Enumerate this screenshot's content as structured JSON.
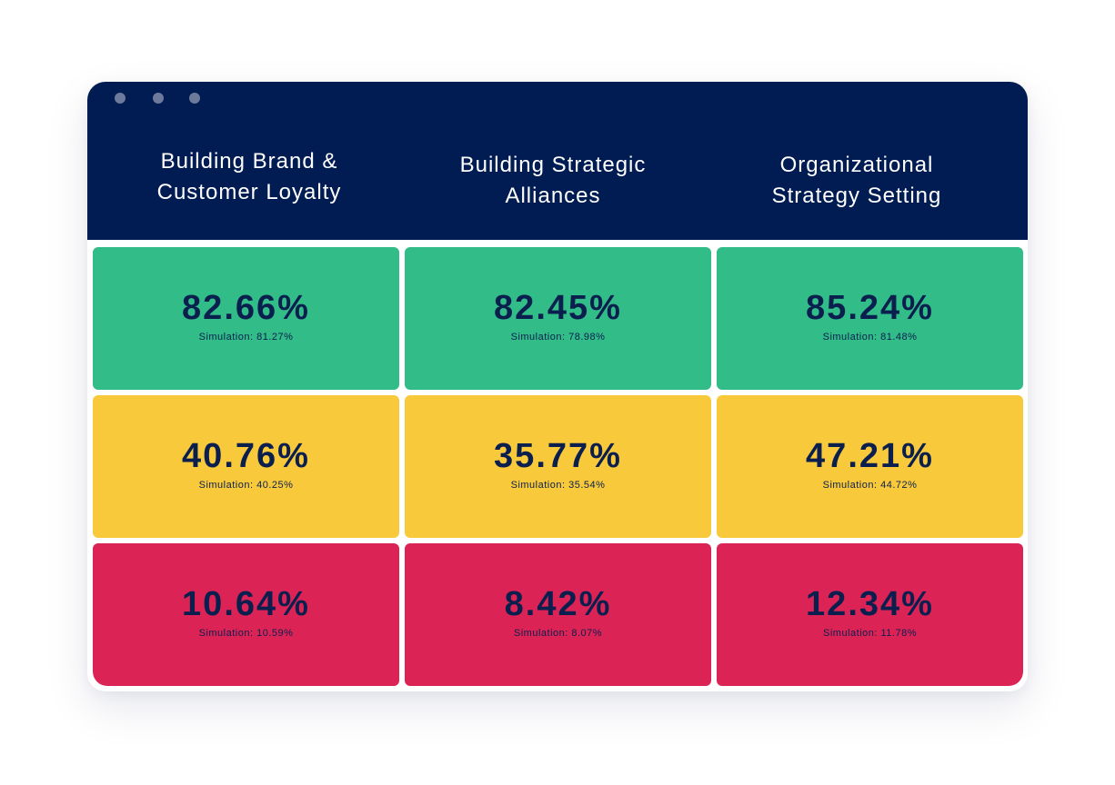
{
  "columns": [
    "Building Brand &\nCustomer Loyalty",
    "Building Strategic\nAlliances",
    "Organizational\nStrategy Setting"
  ],
  "rows": [
    {
      "status": "green",
      "color": "#31bc88",
      "cells": [
        {
          "value": "82.66%",
          "simulation": "Simulation: 81.27%"
        },
        {
          "value": "82.45%",
          "simulation": "Simulation: 78.98%"
        },
        {
          "value": "85.24%",
          "simulation": "Simulation: 81.48%"
        }
      ]
    },
    {
      "status": "yellow",
      "color": "#f8c93a",
      "cells": [
        {
          "value": "40.76%",
          "simulation": "Simulation: 40.25%"
        },
        {
          "value": "35.77%",
          "simulation": "Simulation: 35.54%"
        },
        {
          "value": "47.21%",
          "simulation": "Simulation: 44.72%"
        }
      ]
    },
    {
      "status": "red",
      "color": "#dc2356",
      "cells": [
        {
          "value": "10.64%",
          "simulation": "Simulation: 10.59%"
        },
        {
          "value": "8.42%",
          "simulation": "Simulation: 8.07%"
        },
        {
          "value": "12.34%",
          "simulation": "Simulation: 11.78%"
        }
      ]
    }
  ],
  "theme": {
    "header_bg": "#001c52",
    "text_dark": "#0a1f4e"
  }
}
